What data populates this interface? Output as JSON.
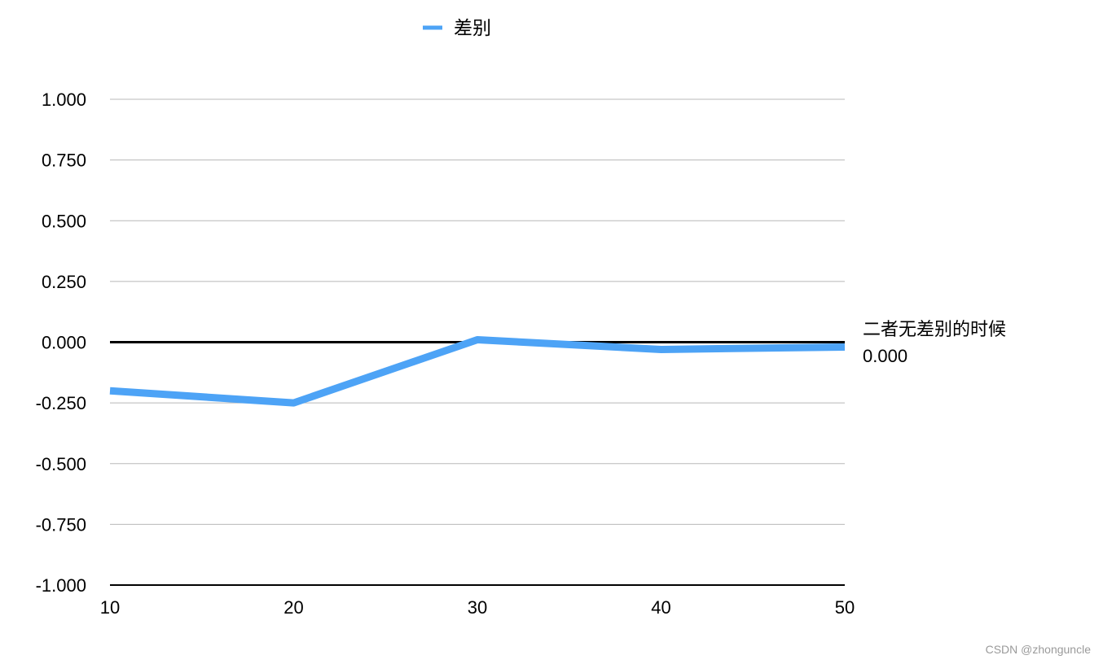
{
  "chart_data": {
    "type": "line",
    "x": [
      10,
      20,
      30,
      40,
      50
    ],
    "x_ticks": [
      "10",
      "20",
      "30",
      "40",
      "50"
    ],
    "series": [
      {
        "name": "差别",
        "values": [
          -0.2,
          -0.25,
          0.01,
          -0.03,
          -0.02
        ],
        "color": "#4da3f6"
      }
    ],
    "ylim": [
      -1.0,
      1.0
    ],
    "y_ticks": [
      "1.000",
      "0.750",
      "0.500",
      "0.250",
      "0.000",
      "-0.250",
      "-0.500",
      "-0.750",
      "-1.000"
    ],
    "y_tick_values": [
      1.0,
      0.75,
      0.5,
      0.25,
      0.0,
      -0.25,
      -0.5,
      -0.75,
      -1.0
    ],
    "grid": true,
    "legend_position": "top-center",
    "reference_line": {
      "value": 0.0,
      "label": "二者无差别的时候",
      "value_label": "0.000",
      "color": "#000000"
    }
  },
  "watermark": "CSDN @zhonguncle"
}
